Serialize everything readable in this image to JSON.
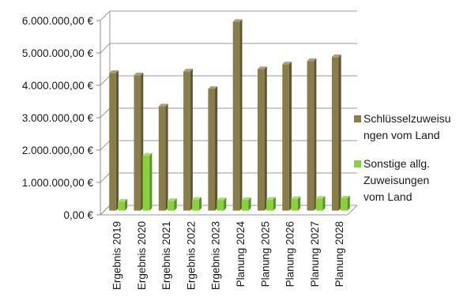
{
  "chart_data": {
    "type": "bar",
    "variant": "3d-column",
    "title": "",
    "xlabel": "",
    "ylabel": "",
    "categories": [
      "Ergebnis 2019",
      "Ergebnis 2020",
      "Ergebnis 2021",
      "Ergebnis 2022",
      "Ergebnis 2023",
      "Planung 2024",
      "Planung 2025",
      "Planung 2026",
      "Planung 2027",
      "Planung 2028"
    ],
    "series": [
      {
        "name": "Schlüsselzuweisungen vom Land",
        "legend_lines": [
          "Schlüsselzuweisu",
          "ngen vom Land"
        ],
        "color": "#8b7d4a",
        "values": [
          4250000,
          4180000,
          3220000,
          4300000,
          3760000,
          5830000,
          4370000,
          4520000,
          4620000,
          4740000
        ]
      },
      {
        "name": "Sonstige allg. Zuweisungen vom Land",
        "legend_lines": [
          "Sonstige allg.",
          "Zuweisungen",
          "vom Land"
        ],
        "color": "#86d23a",
        "values": [
          280000,
          1700000,
          300000,
          340000,
          320000,
          330000,
          340000,
          360000,
          370000,
          380000
        ]
      }
    ],
    "ylim": [
      0,
      6000000
    ],
    "y_ticks": [
      0,
      1000000,
      2000000,
      3000000,
      4000000,
      5000000,
      6000000
    ],
    "y_tick_labels": [
      "0,00 €",
      "1.000.000,00 €",
      "2.000.000,00 €",
      "3.000.000,00 €",
      "4.000.000,00 €",
      "5.000.000,00 €",
      "6.000.000,00 €"
    ],
    "grid": true,
    "legend_position": "right"
  }
}
